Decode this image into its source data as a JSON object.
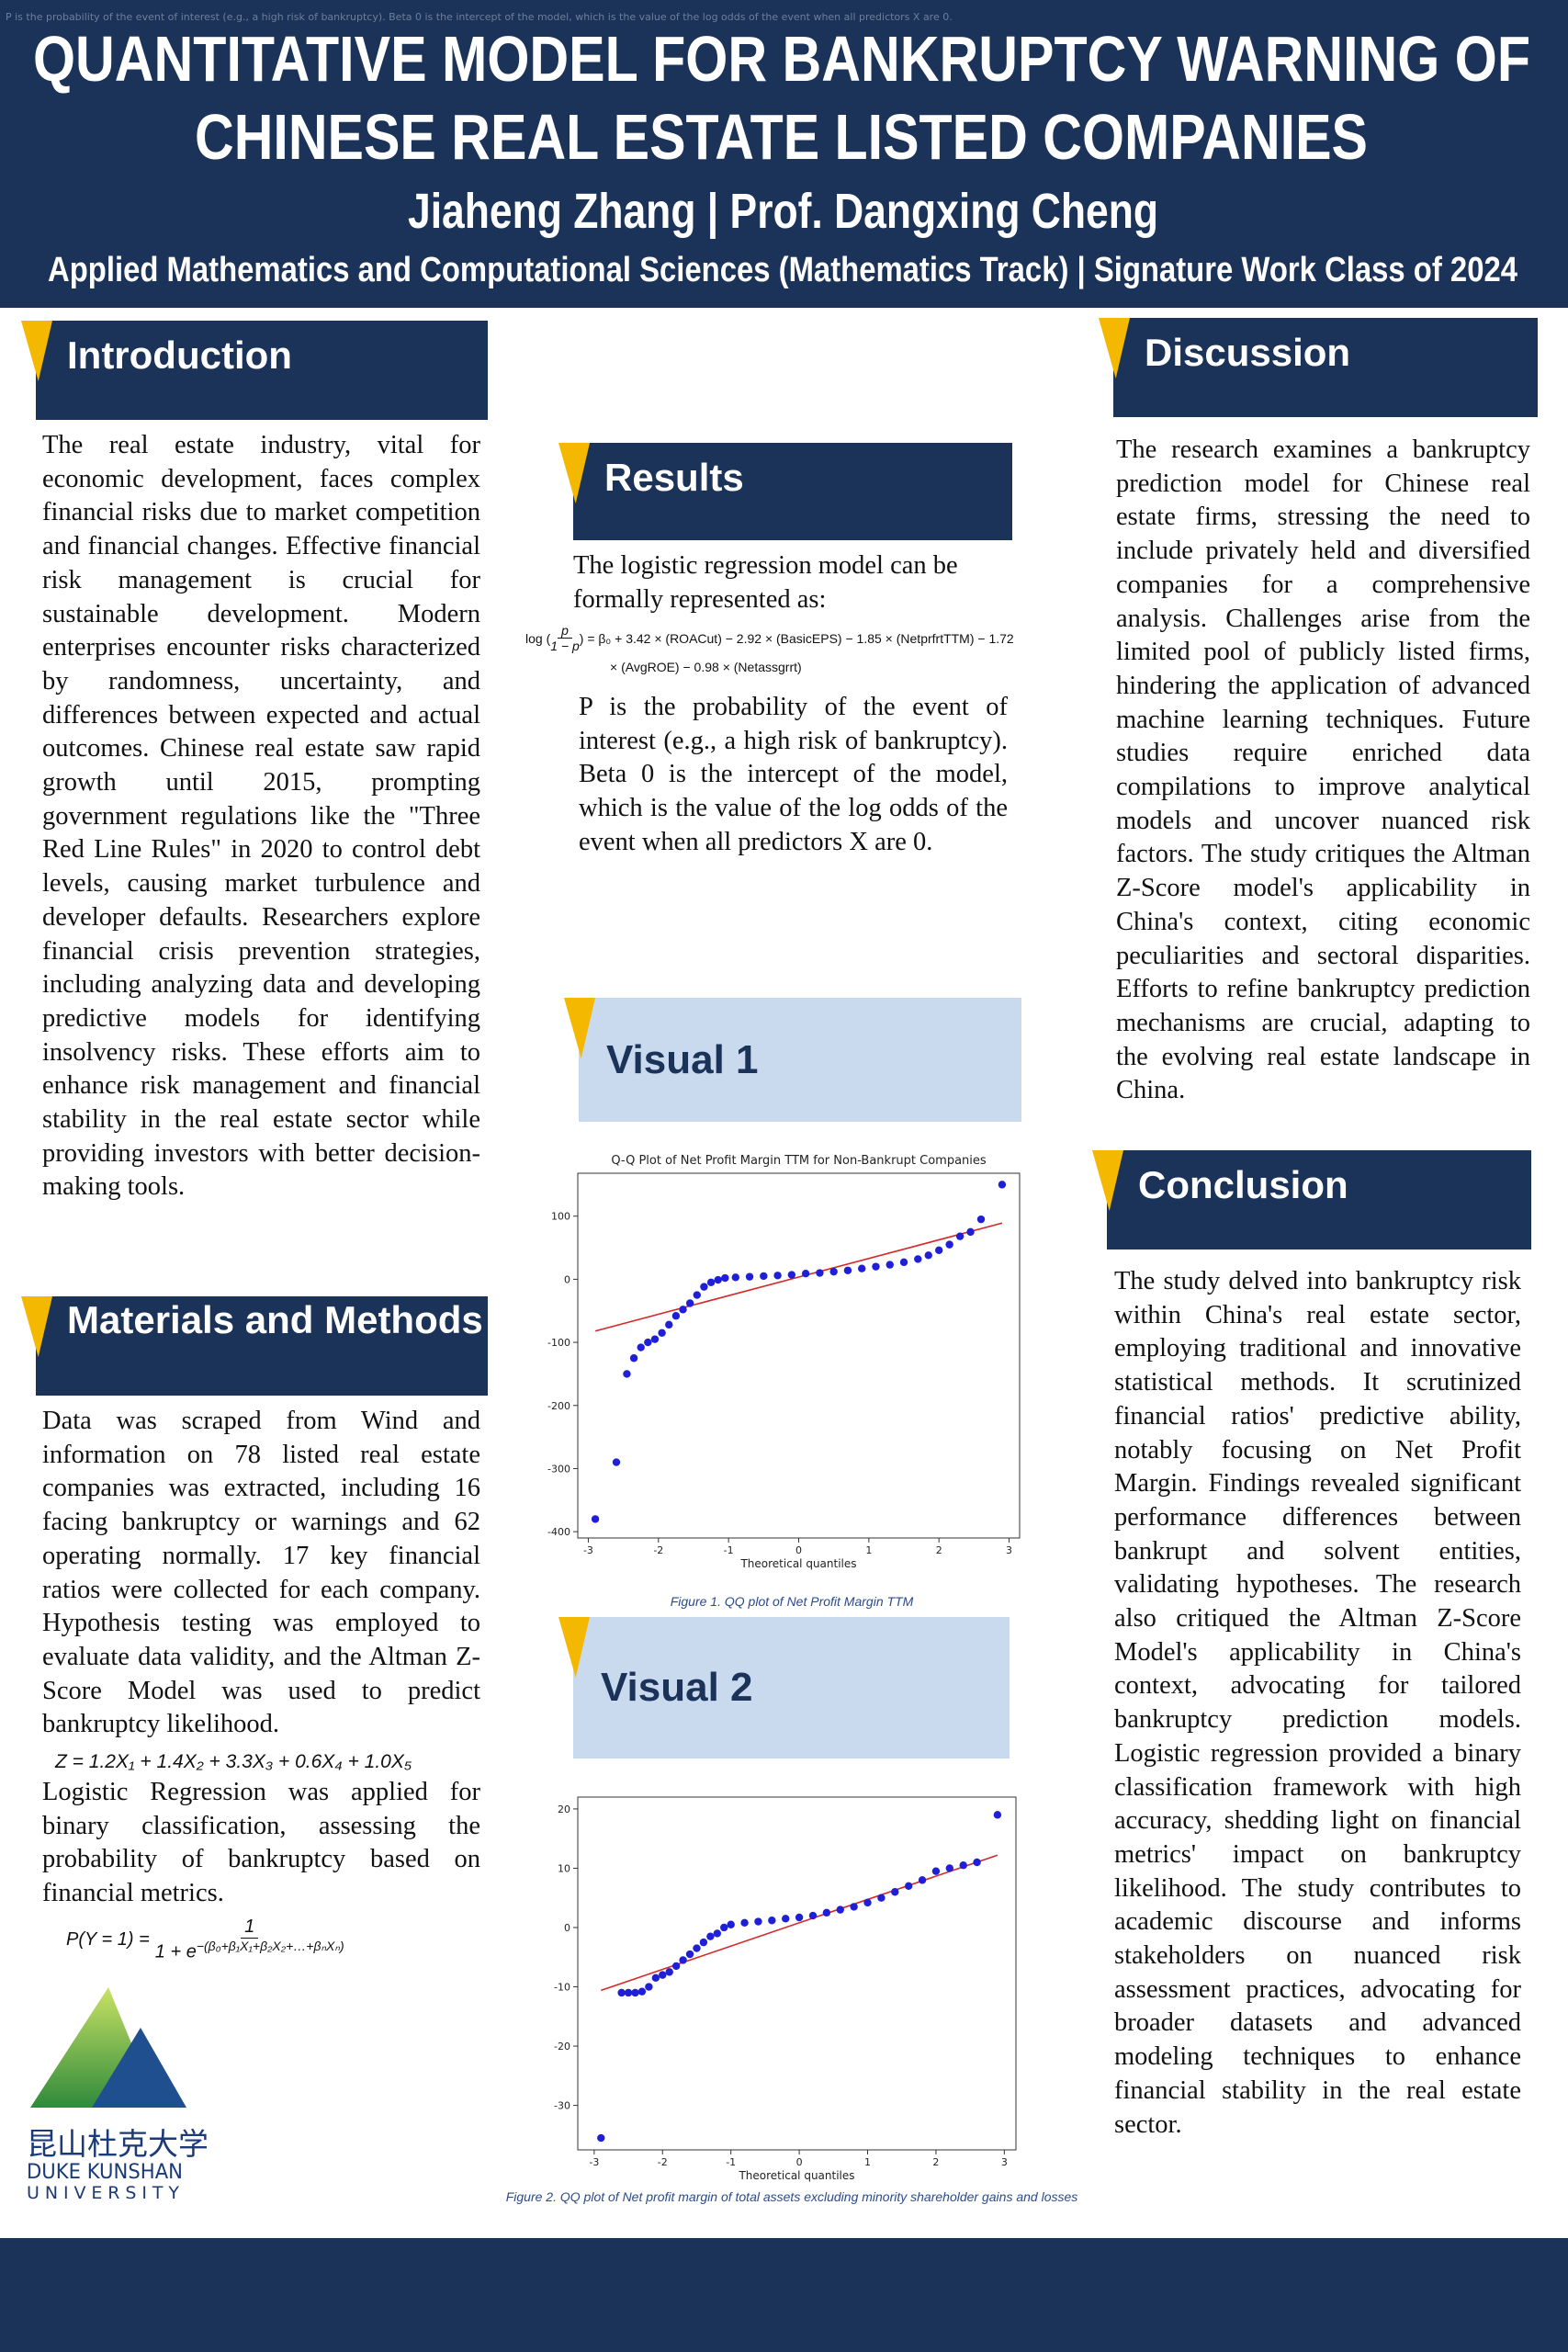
{
  "header": {
    "overlay_note": "P is the probability of the event of interest (e.g., a high risk of bankruptcy). Beta 0 is the intercept of the model, which is the value of the log odds of the event when all predictors X are 0.",
    "title_line1": "QUANTITATIVE MODEL FOR BANKRUPTCY WARNING OF",
    "title_line2": "CHINESE REAL ESTATE LISTED COMPANIES",
    "authors": "Jiaheng Zhang | Prof. Dangxing Cheng",
    "affiliation": "Applied Mathematics and Computational Sciences (Mathematics Track) | Signature Work Class of 2024"
  },
  "introduction": {
    "heading": "Introduction",
    "text": "The real estate industry, vital for economic development, faces complex financial risks due to market competition and financial changes. Effective financial risk management is crucial for sustainable development. Modern enterprises encounter risks characterized by randomness, uncertainty, and differences between expected and actual outcomes. Chinese real estate saw rapid growth until 2015, prompting government regulations like the \"Three Red Line Rules\" in 2020 to control debt levels, causing market turbulence and developer defaults. Researchers explore financial crisis prevention strategies, including analyzing data and developing predictive models for identifying insolvency risks. These efforts aim to enhance risk management and financial stability in the real estate sector while providing investors with better decision-making tools."
  },
  "materials": {
    "heading": "Materials and Methods",
    "text1": "Data was scraped from Wind and information on 78 listed real estate companies was extracted, including 16 facing bankruptcy or warnings and 62 operating normally. 17 key financial ratios were collected for each company. Hypothesis testing was employed to evaluate data validity, and the Altman Z-Score Model was used to predict bankruptcy likelihood.",
    "z_formula": "Z = 1.2X₁ + 1.4X₂ + 3.3X₃ + 0.6X₄ + 1.0X₅",
    "text2": "Logistic Regression was applied for binary classification, assessing the probability of bankruptcy based on financial metrics.",
    "logistic_formula": {
      "lhs": "P(Y = 1) =",
      "numerator": "1",
      "denominator_base": "1 + e",
      "denominator_exponent": "−(β₀+β₁X₁+β₂X₂+…+βₙXₙ)"
    }
  },
  "logo": {
    "chinese": "昆山杜克大学",
    "line1": "DUKE KUNSHAN",
    "line2": "UNIVERSITY"
  },
  "results": {
    "heading": "Results",
    "intro": "The logistic regression model can be formally represented as:",
    "formula": {
      "log_prefix": "log (",
      "numerator": "p",
      "denominator": "1 − p",
      "rhs_line1": ") = β₀ + 3.42 × (ROACut) − 2.92 × (BasicEPS) − 1.85 × (NetprfrtTTM) − 1.72",
      "rhs_line2": "× (AvgROE) − 0.98 × (Netassgrrt)"
    },
    "text": "P is the probability of the event of interest (e.g., a high risk of bankruptcy). Beta 0 is the intercept of the model, which is the value of the log odds of the event when all predictors X are 0."
  },
  "visual1": {
    "heading": "Visual 1",
    "caption": "Figure 1. QQ plot of Net Profit Margin TTM",
    "chart": {
      "type": "scatter",
      "title": "Q-Q Plot of Net Profit Margin TTM for Non-Bankrupt Companies",
      "x_label": "Theoretical quantiles",
      "x": [
        -2.9,
        -2.6,
        -2.45,
        -2.35,
        -2.25,
        -2.15,
        -2.05,
        -1.95,
        -1.85,
        -1.75,
        -1.65,
        -1.55,
        -1.45,
        -1.35,
        -1.25,
        -1.15,
        -1.05,
        -0.9,
        -0.7,
        -0.5,
        -0.3,
        -0.1,
        0.1,
        0.3,
        0.5,
        0.7,
        0.9,
        1.1,
        1.3,
        1.5,
        1.7,
        1.85,
        2.0,
        2.15,
        2.3,
        2.45,
        2.6,
        2.9
      ],
      "y": [
        -380,
        -290,
        -150,
        -125,
        -108,
        -100,
        -95,
        -85,
        -72,
        -58,
        -48,
        -38,
        -25,
        -12,
        -5,
        -1,
        2,
        3,
        4,
        5,
        6,
        7,
        9,
        10,
        12,
        14,
        17,
        20,
        23,
        27,
        32,
        38,
        46,
        55,
        68,
        75,
        95,
        150
      ],
      "point_color": "#1f1fd8",
      "fit_line": {
        "x": [
          -2.9,
          2.9
        ],
        "y": [
          -82,
          89
        ]
      },
      "line_color": "#d62728",
      "xlim": [
        -3.15,
        3.15
      ],
      "ylim": [
        -410,
        168
      ],
      "xticks": [
        -3,
        -2,
        -1,
        0,
        1,
        2,
        3
      ],
      "yticks": [
        -400,
        -300,
        -200,
        -100,
        0,
        100
      ]
    }
  },
  "visual2": {
    "heading": "Visual 2",
    "caption": "Figure 2. QQ plot of Net profit margin of total assets excluding minority shareholder gains and losses",
    "chart": {
      "type": "scatter",
      "x_label": "Theoretical quantiles",
      "x": [
        -2.9,
        -2.6,
        -2.5,
        -2.4,
        -2.3,
        -2.2,
        -2.1,
        -2.0,
        -1.9,
        -1.8,
        -1.7,
        -1.6,
        -1.5,
        -1.4,
        -1.3,
        -1.2,
        -1.1,
        -1.0,
        -0.8,
        -0.6,
        -0.4,
        -0.2,
        0,
        0.2,
        0.4,
        0.6,
        0.8,
        1.0,
        1.2,
        1.4,
        1.6,
        1.8,
        2.0,
        2.2,
        2.4,
        2.6,
        2.9
      ],
      "y": [
        -35.5,
        -11,
        -11,
        -11,
        -10.8,
        -10,
        -8.5,
        -8,
        -7.5,
        -6.5,
        -5.5,
        -4.5,
        -3.5,
        -2.5,
        -1.5,
        -1,
        0,
        0.5,
        0.8,
        1,
        1.2,
        1.5,
        1.7,
        2,
        2.5,
        3,
        3.5,
        4.2,
        5,
        6,
        7,
        8,
        9.5,
        10,
        10.5,
        11,
        19
      ],
      "point_color": "#1f1fd8",
      "fit_line": {
        "x": [
          -2.9,
          2.9
        ],
        "y": [
          -10.6,
          12.2
        ]
      },
      "line_color": "#d62728",
      "xlim": [
        -3.24,
        3.17
      ],
      "ylim": [
        -37.5,
        22
      ],
      "xticks": [
        -3,
        -2,
        -1,
        0,
        1,
        2,
        3
      ],
      "yticks": [
        -30,
        -20,
        -10,
        0,
        10,
        20
      ]
    }
  },
  "discussion": {
    "heading": "Discussion",
    "text": "The research examines a bankruptcy prediction model for Chinese real estate firms, stressing the need to include privately held and diversified companies for a comprehensive analysis. Challenges arise from the limited pool of publicly listed firms, hindering the application of advanced machine learning techniques. Future studies require enriched data compilations to improve analytical models and uncover nuanced risk factors. The study critiques the Altman Z-Score model's applicability in China's context, citing economic peculiarities and sectoral disparities. Efforts to refine bankruptcy prediction mechanisms are crucial, adapting to the evolving real estate landscape in China."
  },
  "conclusion": {
    "heading": "Conclusion",
    "text": "The study delved into bankruptcy risk within China's real estate sector, employing traditional and innovative statistical methods. It scrutinized financial ratios' predictive ability, notably focusing on Net Profit Margin. Findings revealed significant performance differences between bankrupt and solvent entities, validating hypotheses. The research also critiqued the Altman Z-Score Model's applicability in China's context, advocating for tailored bankruptcy prediction models. Logistic regression provided a binary classification framework with high accuracy, shedding light on financial metrics' impact on bankruptcy likelihood. The study contributes to academic discourse and informs stakeholders on nuanced risk assessment practices, advocating for broader datasets and advanced modeling techniques to enhance financial stability in the real estate sector."
  }
}
